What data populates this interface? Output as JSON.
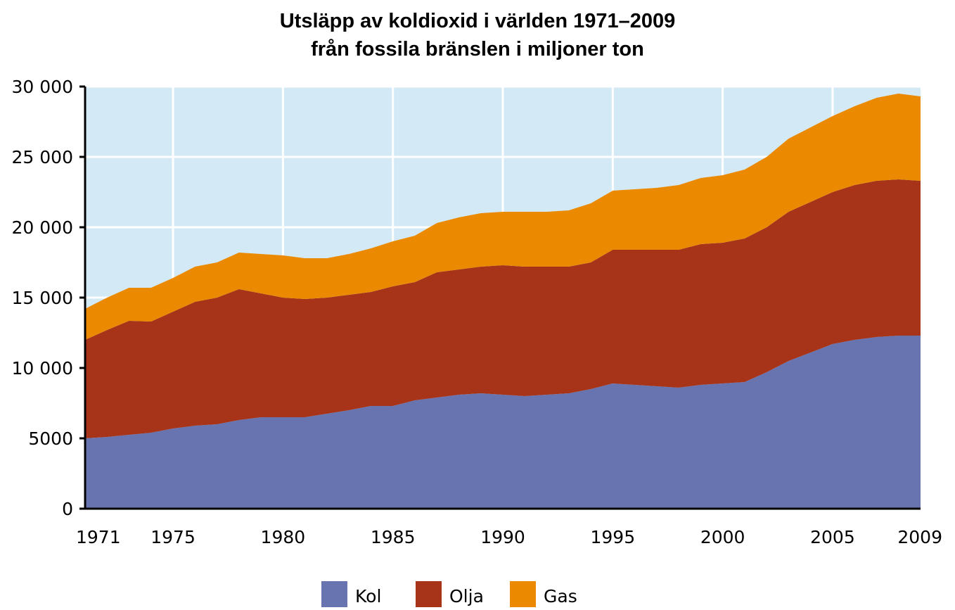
{
  "chart_data": {
    "type": "area",
    "stacked": true,
    "title_line1": "Utsläpp av koldioxid i världen 1971–2009",
    "title_line2": "från fossila bränslen i miljoner ton",
    "x": [
      1971,
      1972,
      1973,
      1974,
      1975,
      1976,
      1977,
      1978,
      1979,
      1980,
      1981,
      1982,
      1983,
      1984,
      1985,
      1986,
      1987,
      1988,
      1989,
      1990,
      1991,
      1992,
      1993,
      1994,
      1995,
      1996,
      1997,
      1998,
      1999,
      2000,
      2001,
      2002,
      2003,
      2004,
      2005,
      2006,
      2007,
      2008,
      2009
    ],
    "series": [
      {
        "name": "Kol",
        "color": "#6874b0",
        "values": [
          5000,
          5100,
          5250,
          5400,
          5700,
          5900,
          6000,
          6300,
          6500,
          6500,
          6500,
          6750,
          7000,
          7300,
          7300,
          7700,
          7900,
          8100,
          8200,
          8100,
          8000,
          8100,
          8200,
          8500,
          8900,
          8800,
          8700,
          8600,
          8800,
          8900,
          9000,
          9700,
          10500,
          11100,
          11700,
          12000,
          12200,
          12300,
          12300
        ]
      },
      {
        "name": "Olja",
        "color": "#a73419",
        "values": [
          7000,
          7600,
          8100,
          7900,
          8300,
          8800,
          9000,
          9300,
          8800,
          8500,
          8400,
          8250,
          8200,
          8100,
          8500,
          8400,
          8900,
          8900,
          9000,
          9200,
          9200,
          9100,
          9000,
          9000,
          9500,
          9600,
          9700,
          9800,
          10000,
          10000,
          10200,
          10300,
          10600,
          10700,
          10800,
          11000,
          11100,
          11100,
          11000
        ]
      },
      {
        "name": "Gas",
        "color": "#eb8a00",
        "values": [
          2200,
          2300,
          2350,
          2400,
          2400,
          2500,
          2500,
          2600,
          2800,
          3000,
          2900,
          2800,
          2900,
          3100,
          3200,
          3300,
          3500,
          3700,
          3800,
          3800,
          3900,
          3900,
          4000,
          4200,
          4200,
          4300,
          4400,
          4600,
          4700,
          4800,
          4900,
          5000,
          5200,
          5300,
          5400,
          5600,
          5900,
          6100,
          6000
        ]
      }
    ],
    "legend": [
      {
        "label": "Kol",
        "color": "#6874b0"
      },
      {
        "label": "Olja",
        "color": "#a73419"
      },
      {
        "label": "Gas",
        "color": "#eb8a00"
      }
    ],
    "xlim": [
      1971,
      2009
    ],
    "ylim": [
      0,
      30000
    ],
    "x_ticks": [
      {
        "value": 1971,
        "label": "1971"
      },
      {
        "value": 1975,
        "label": "1975"
      },
      {
        "value": 1980,
        "label": "1980"
      },
      {
        "value": 1985,
        "label": "1985"
      },
      {
        "value": 1990,
        "label": "1990"
      },
      {
        "value": 1995,
        "label": "1995"
      },
      {
        "value": 2000,
        "label": "2000"
      },
      {
        "value": 2005,
        "label": "2005"
      },
      {
        "value": 2009,
        "label": "2009"
      }
    ],
    "y_ticks": [
      {
        "value": 0,
        "label": "0"
      },
      {
        "value": 5000,
        "label": "5000"
      },
      {
        "value": 10000,
        "label": "10 000"
      },
      {
        "value": 15000,
        "label": "15 000"
      },
      {
        "value": 20000,
        "label": "20 000"
      },
      {
        "value": 25000,
        "label": "25 000"
      },
      {
        "value": 30000,
        "label": "30 000"
      }
    ],
    "grid": true,
    "plot_background": "#d3eaf6",
    "legend_position": "bottom-center"
  }
}
